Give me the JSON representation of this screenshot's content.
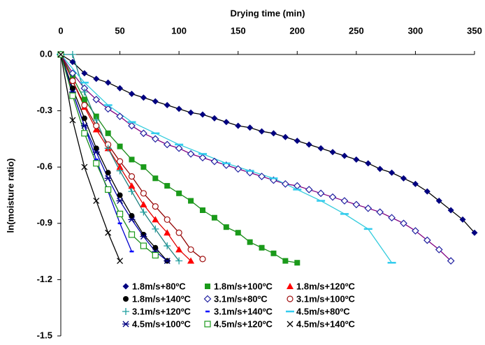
{
  "chart_data": {
    "type": "scatter",
    "x_label": "Drying time (min)",
    "y_label": "ln(moisture ratio)",
    "xlim": [
      0,
      350
    ],
    "xticks": [
      0,
      50,
      100,
      150,
      200,
      250,
      300,
      350
    ],
    "ylim": [
      -1.5,
      0
    ],
    "yticks": [
      {
        "value": 0,
        "label": "0.0"
      },
      -0.3,
      -0.6,
      -0.9,
      -1.2,
      -1.5
    ],
    "series": [
      {
        "name": "1.8m/s+80ºC",
        "color": "#000080",
        "marker": "diamond",
        "line_color": "#000000",
        "x": [
          0,
          10,
          20,
          30,
          40,
          50,
          60,
          70,
          80,
          90,
          100,
          110,
          120,
          130,
          140,
          150,
          160,
          170,
          180,
          190,
          200,
          210,
          220,
          230,
          240,
          250,
          260,
          270,
          280,
          290,
          300,
          310,
          320,
          330,
          340,
          350
        ],
        "values": [
          0,
          -0.04,
          -0.1,
          -0.13,
          -0.15,
          -0.18,
          -0.21,
          -0.23,
          -0.25,
          -0.27,
          -0.29,
          -0.31,
          -0.32,
          -0.34,
          -0.36,
          -0.38,
          -0.39,
          -0.41,
          -0.42,
          -0.44,
          -0.46,
          -0.48,
          -0.5,
          -0.52,
          -0.54,
          -0.56,
          -0.58,
          -0.61,
          -0.63,
          -0.66,
          -0.69,
          -0.73,
          -0.78,
          -0.83,
          -0.88,
          -0.95
        ]
      },
      {
        "name": "1.8m/s+100ºC",
        "color": "#1a9a1a",
        "marker": "square",
        "line_color": "#1a8a1a",
        "x": [
          0,
          10,
          20,
          30,
          40,
          50,
          60,
          70,
          80,
          90,
          100,
          110,
          120,
          130,
          140,
          150,
          160,
          170,
          180,
          190,
          200
        ],
        "values": [
          0,
          -0.12,
          -0.24,
          -0.33,
          -0.42,
          -0.49,
          -0.56,
          -0.6,
          -0.66,
          -0.7,
          -0.74,
          -0.78,
          -0.83,
          -0.87,
          -0.92,
          -0.95,
          -1.0,
          -1.03,
          -1.06,
          -1.1,
          -1.11
        ]
      },
      {
        "name": "1.8m/s+120ºC",
        "color": "#ff0000",
        "marker": "triangle",
        "line_color": "#dd0000",
        "x": [
          0,
          10,
          20,
          30,
          40,
          50,
          60,
          70,
          80,
          90,
          100,
          110
        ],
        "values": [
          0,
          -0.14,
          -0.28,
          -0.4,
          -0.5,
          -0.6,
          -0.7,
          -0.8,
          -0.88,
          -0.95,
          -1.04,
          -1.1
        ]
      },
      {
        "name": "1.8m/s+140ºC",
        "color": "#000000",
        "marker": "circle",
        "line_color": "#000000",
        "x": [
          0,
          10,
          20,
          30,
          40,
          50,
          60,
          70,
          80,
          90
        ],
        "values": [
          0,
          -0.18,
          -0.34,
          -0.5,
          -0.63,
          -0.75,
          -0.86,
          -0.96,
          -1.03,
          -1.1
        ]
      },
      {
        "name": "3.1m/s+80ºC",
        "color": "#2020a0",
        "marker": "diamond-open",
        "line_color": "#800080",
        "x": [
          0,
          10,
          20,
          30,
          40,
          50,
          60,
          70,
          80,
          90,
          100,
          110,
          120,
          130,
          140,
          150,
          160,
          170,
          180,
          190,
          200,
          210,
          220,
          230,
          240,
          250,
          260,
          270,
          280,
          290,
          300,
          310,
          320,
          330
        ],
        "values": [
          0,
          -0.1,
          -0.18,
          -0.24,
          -0.29,
          -0.33,
          -0.38,
          -0.42,
          -0.45,
          -0.48,
          -0.5,
          -0.53,
          -0.55,
          -0.57,
          -0.59,
          -0.61,
          -0.63,
          -0.65,
          -0.67,
          -0.69,
          -0.7,
          -0.72,
          -0.74,
          -0.76,
          -0.78,
          -0.8,
          -0.82,
          -0.84,
          -0.87,
          -0.9,
          -0.94,
          -0.99,
          -1.04,
          -1.1
        ]
      },
      {
        "name": "3.1m/s+100ºC",
        "color": "#a01010",
        "marker": "circle-open",
        "line_color": "#900000",
        "x": [
          0,
          10,
          20,
          30,
          40,
          50,
          60,
          70,
          80,
          90,
          100,
          110,
          120
        ],
        "values": [
          0,
          -0.14,
          -0.27,
          -0.38,
          -0.48,
          -0.57,
          -0.65,
          -0.74,
          -0.81,
          -0.88,
          -0.95,
          -1.04,
          -1.09
        ]
      },
      {
        "name": "3.1m/s+120ºC",
        "color": "#20a0a0",
        "marker": "plus",
        "line_color": "#208080",
        "x": [
          0,
          10,
          20,
          30,
          40,
          50,
          60,
          70,
          80,
          90,
          100
        ],
        "values": [
          0,
          0,
          -0.2,
          -0.35,
          -0.5,
          -0.62,
          -0.73,
          -0.84,
          -0.93,
          -1.02,
          -1.1
        ]
      },
      {
        "name": "3.1m/s+140ºC",
        "color": "#0000ff",
        "marker": "dash",
        "line_color": "#0000cc",
        "x": [
          0,
          10,
          20,
          30,
          40,
          50,
          60
        ],
        "values": [
          0,
          -0.2,
          -0.38,
          -0.56,
          -0.73,
          -0.9,
          -1.05
        ]
      },
      {
        "name": "4.5m/s+80ºC",
        "color": "#33ccee",
        "marker": "dash-wide",
        "line_color": "#33ccdd",
        "x": [
          0,
          20,
          40,
          60,
          80,
          100,
          120,
          140,
          160,
          180,
          200,
          220,
          240,
          260,
          280
        ],
        "values": [
          0,
          -0.15,
          -0.27,
          -0.36,
          -0.42,
          -0.48,
          -0.53,
          -0.58,
          -0.62,
          -0.66,
          -0.72,
          -0.78,
          -0.85,
          -0.93,
          -1.11
        ]
      },
      {
        "name": "4.5m/s+100ºC",
        "color": "#000080",
        "marker": "asterisk",
        "line_color": "#0000aa",
        "x": [
          0,
          10,
          20,
          30,
          40,
          50,
          60,
          70,
          80,
          90
        ],
        "values": [
          0,
          -0.2,
          -0.38,
          -0.52,
          -0.66,
          -0.78,
          -0.88,
          -0.97,
          -1.05,
          -1.1
        ]
      },
      {
        "name": "4.5m/s+120ºC",
        "color": "#1a9a1a",
        "marker": "square-open",
        "line_color": "#1a8a1a",
        "x": [
          0,
          10,
          20,
          30,
          40,
          50,
          60,
          70,
          80
        ],
        "values": [
          0,
          -0.22,
          -0.42,
          -0.58,
          -0.72,
          -0.85,
          -0.96,
          -1.02,
          -1.07
        ]
      },
      {
        "name": "4.5m/s+140ºC",
        "color": "#000000",
        "marker": "x",
        "line_color": "#000000",
        "x": [
          0,
          10,
          20,
          30,
          40,
          50
        ],
        "values": [
          0,
          -0.35,
          -0.6,
          -0.78,
          -0.95,
          -1.1
        ]
      }
    ]
  }
}
